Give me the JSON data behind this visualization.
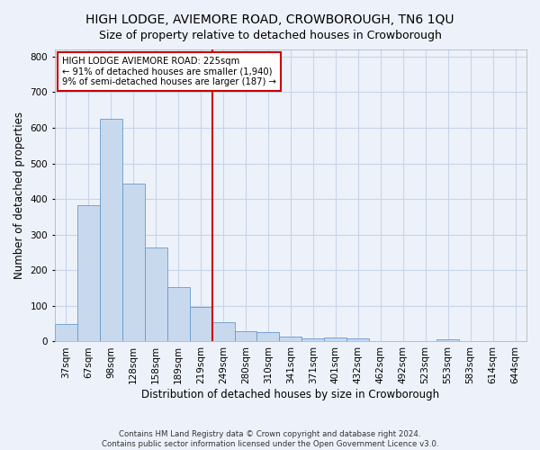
{
  "title": "HIGH LODGE, AVIEMORE ROAD, CROWBOROUGH, TN6 1QU",
  "subtitle": "Size of property relative to detached houses in Crowborough",
  "xlabel": "Distribution of detached houses by size in Crowborough",
  "ylabel": "Number of detached properties",
  "categories": [
    "37sqm",
    "67sqm",
    "98sqm",
    "128sqm",
    "158sqm",
    "189sqm",
    "219sqm",
    "249sqm",
    "280sqm",
    "310sqm",
    "341sqm",
    "371sqm",
    "401sqm",
    "432sqm",
    "462sqm",
    "492sqm",
    "523sqm",
    "553sqm",
    "583sqm",
    "614sqm",
    "644sqm"
  ],
  "values": [
    48,
    383,
    625,
    443,
    265,
    152,
    97,
    53,
    30,
    27,
    15,
    10,
    12,
    10,
    0,
    0,
    0,
    5,
    0,
    0,
    0
  ],
  "bar_color": "#c8d9ee",
  "bar_edge_color": "#6699cc",
  "grid_color": "#c8d4e8",
  "background_color": "#edf2fa",
  "property_label": "HIGH LODGE AVIEMORE ROAD: 225sqm",
  "pct_smaller": 91,
  "n_smaller": "1,940",
  "pct_larger": 9,
  "n_larger": 187,
  "vline_color": "#cc0000",
  "annotation_box_color": "#cc0000",
  "title_fontsize": 10,
  "tick_fontsize": 7.5,
  "label_fontsize": 8.5,
  "footer_text": "Contains HM Land Registry data © Crown copyright and database right 2024.\nContains public sector information licensed under the Open Government Licence v3.0.",
  "ylim": [
    0,
    820
  ],
  "yticks": [
    0,
    100,
    200,
    300,
    400,
    500,
    600,
    700,
    800
  ],
  "vline_x": 6.5
}
